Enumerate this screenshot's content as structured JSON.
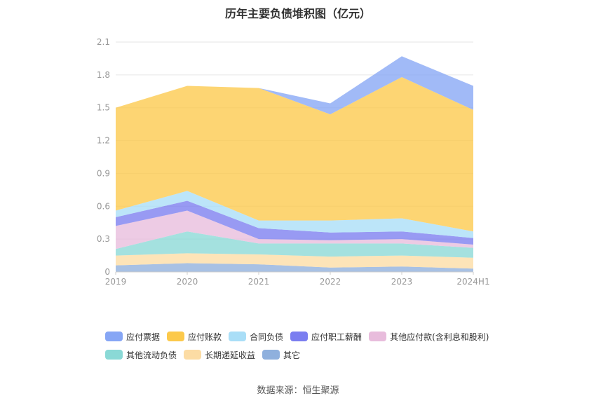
{
  "chart_data": {
    "type": "area",
    "stacked": true,
    "title": "历年主要负债堆积图（亿元）",
    "categories": [
      "2019",
      "2020",
      "2021",
      "2022",
      "2023",
      "2024H1"
    ],
    "ylim": [
      0,
      2.1
    ],
    "yticks": [
      "0",
      "0.3",
      "0.6",
      "0.9",
      "1.2",
      "1.5",
      "1.8",
      "2.1"
    ],
    "grid": true,
    "legend_position": "bottom",
    "series": [
      {
        "name": "其它",
        "color": "#8fb0dd",
        "values": [
          0.06,
          0.08,
          0.07,
          0.04,
          0.05,
          0.03
        ]
      },
      {
        "name": "长期递延收益",
        "color": "#fcdca4",
        "values": [
          0.09,
          0.09,
          0.09,
          0.1,
          0.1,
          0.1
        ]
      },
      {
        "name": "其他流动负债",
        "color": "#8ad9d6",
        "values": [
          0.06,
          0.2,
          0.1,
          0.12,
          0.11,
          0.09
        ]
      },
      {
        "name": "其他应付款(含利息和股利)",
        "color": "#e8bcdc",
        "values": [
          0.21,
          0.19,
          0.04,
          0.03,
          0.04,
          0.03
        ]
      },
      {
        "name": "应付职工薪酬",
        "color": "#7b7ef0",
        "values": [
          0.08,
          0.09,
          0.1,
          0.07,
          0.07,
          0.06
        ]
      },
      {
        "name": "合同负债",
        "color": "#a9def7",
        "values": [
          0.06,
          0.09,
          0.07,
          0.11,
          0.12,
          0.06
        ]
      },
      {
        "name": "应付账款",
        "color": "#fcc94b",
        "values": [
          0.94,
          0.96,
          1.21,
          0.97,
          1.29,
          1.11
        ]
      },
      {
        "name": "应付票据",
        "color": "#86a6f5",
        "values": [
          0.0,
          0.0,
          0.0,
          0.1,
          0.19,
          0.22
        ]
      }
    ]
  },
  "legend_order": [
    "应付票据",
    "应付账款",
    "合同负债",
    "应付职工薪酬",
    "其他应付款(含利息和股利)",
    "其他流动负债",
    "长期递延收益",
    "其它"
  ],
  "source_text": "数据来源：恒生聚源"
}
